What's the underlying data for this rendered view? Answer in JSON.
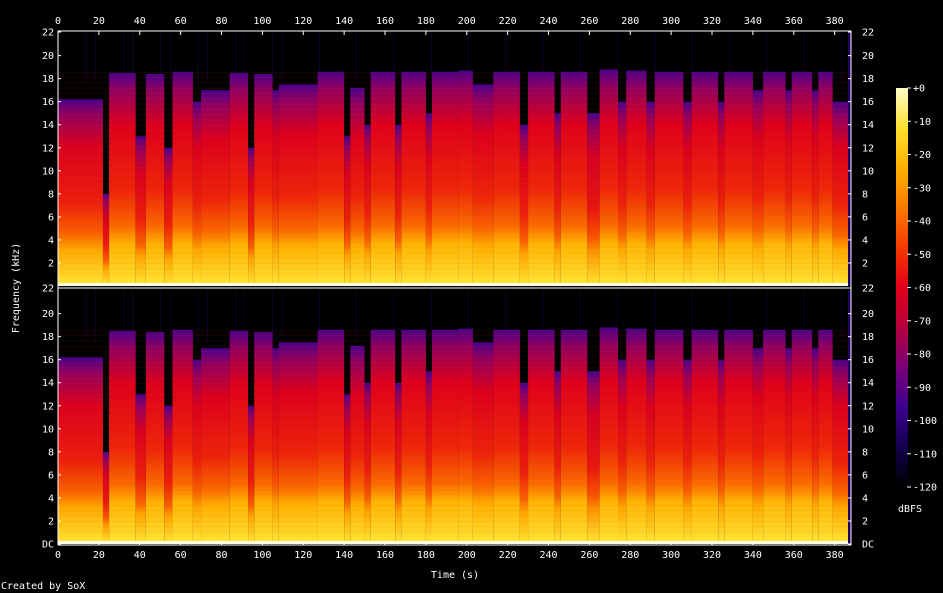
{
  "chart_data": {
    "type": "heatmap",
    "description_free": true,
    "xlabel": "Time (s)",
    "ylabel": "Frequency (kHz)",
    "credit": "Created by SoX",
    "x_ticks": [
      "0",
      "20",
      "40",
      "60",
      "80",
      "100",
      "120",
      "140",
      "160",
      "180",
      "200",
      "220",
      "240",
      "260",
      "280",
      "300",
      "320",
      "340",
      "360",
      "380"
    ],
    "x_range": [
      0,
      388
    ],
    "channels": [
      {
        "y_ticks": [
          "2",
          "4",
          "6",
          "8",
          "10",
          "12",
          "14",
          "16",
          "18",
          "20",
          "22"
        ],
        "y_range": [
          0,
          22.05
        ]
      },
      {
        "y_ticks": [
          "DC",
          "2",
          "4",
          "6",
          "8",
          "10",
          "12",
          "14",
          "16",
          "18",
          "20",
          "22"
        ],
        "y_range": [
          0,
          22.05
        ]
      }
    ],
    "colorbar": {
      "unit": "dBFS",
      "ticks": [
        "+0",
        "-10",
        "-20",
        "-30",
        "-40",
        "-50",
        "-60",
        "-70",
        "-80",
        "-90",
        "-100",
        "-110",
        "-120"
      ],
      "range": [
        -120,
        0
      ],
      "colors": [
        "#000000",
        "#12004d",
        "#3c0090",
        "#7a0078",
        "#b4003c",
        "#e0001a",
        "#f43a00",
        "#fb7a00",
        "#ffb000",
        "#ffe030",
        "#fffcc8"
      ]
    },
    "segments_s": [
      {
        "start": 0,
        "end": 22,
        "top_khz": 16.2,
        "level": 0.42
      },
      {
        "start": 22,
        "end": 25,
        "top_khz": 8,
        "level": 0.3
      },
      {
        "start": 25,
        "end": 38,
        "top_khz": 18.5,
        "level": 0.55
      },
      {
        "start": 38,
        "end": 43,
        "top_khz": 13,
        "level": 0.4
      },
      {
        "start": 43,
        "end": 52,
        "top_khz": 18.4,
        "level": 0.56
      },
      {
        "start": 52,
        "end": 56,
        "top_khz": 12,
        "level": 0.38
      },
      {
        "start": 56,
        "end": 66,
        "top_khz": 18.6,
        "level": 0.57
      },
      {
        "start": 66,
        "end": 70,
        "top_khz": 16,
        "level": 0.4
      },
      {
        "start": 70,
        "end": 84,
        "top_khz": 17.0,
        "level": 0.5
      },
      {
        "start": 84,
        "end": 93,
        "top_khz": 18.5,
        "level": 0.55
      },
      {
        "start": 93,
        "end": 96,
        "top_khz": 12,
        "level": 0.38
      },
      {
        "start": 96,
        "end": 105,
        "top_khz": 18.4,
        "level": 0.55
      },
      {
        "start": 105,
        "end": 108,
        "top_khz": 17,
        "level": 0.4
      },
      {
        "start": 108,
        "end": 127,
        "top_khz": 17.5,
        "level": 0.52
      },
      {
        "start": 127,
        "end": 140,
        "top_khz": 18.6,
        "level": 0.58
      },
      {
        "start": 140,
        "end": 143,
        "top_khz": 13,
        "level": 0.4
      },
      {
        "start": 143,
        "end": 150,
        "top_khz": 17.2,
        "level": 0.52
      },
      {
        "start": 150,
        "end": 153,
        "top_khz": 14,
        "level": 0.4
      },
      {
        "start": 153,
        "end": 165,
        "top_khz": 18.6,
        "level": 0.58
      },
      {
        "start": 165,
        "end": 168,
        "top_khz": 14,
        "level": 0.4
      },
      {
        "start": 168,
        "end": 180,
        "top_khz": 18.6,
        "level": 0.57
      },
      {
        "start": 180,
        "end": 183,
        "top_khz": 15,
        "level": 0.4
      },
      {
        "start": 183,
        "end": 196,
        "top_khz": 18.6,
        "level": 0.57
      },
      {
        "start": 196,
        "end": 203,
        "top_khz": 18.7,
        "level": 0.6
      },
      {
        "start": 203,
        "end": 213,
        "top_khz": 17.5,
        "level": 0.5
      },
      {
        "start": 213,
        "end": 226,
        "top_khz": 18.6,
        "level": 0.58
      },
      {
        "start": 226,
        "end": 230,
        "top_khz": 14,
        "level": 0.4
      },
      {
        "start": 230,
        "end": 243,
        "top_khz": 18.6,
        "level": 0.58
      },
      {
        "start": 243,
        "end": 246,
        "top_khz": 15,
        "level": 0.4
      },
      {
        "start": 246,
        "end": 259,
        "top_khz": 18.6,
        "level": 0.58
      },
      {
        "start": 259,
        "end": 265,
        "top_khz": 15,
        "level": 0.2
      },
      {
        "start": 265,
        "end": 274,
        "top_khz": 18.8,
        "level": 0.58
      },
      {
        "start": 274,
        "end": 278,
        "top_khz": 16,
        "level": 0.42
      },
      {
        "start": 278,
        "end": 288,
        "top_khz": 18.7,
        "level": 0.58
      },
      {
        "start": 288,
        "end": 292,
        "top_khz": 16,
        "level": 0.42
      },
      {
        "start": 292,
        "end": 306,
        "top_khz": 18.6,
        "level": 0.58
      },
      {
        "start": 306,
        "end": 310,
        "top_khz": 16,
        "level": 0.42
      },
      {
        "start": 310,
        "end": 323,
        "top_khz": 18.6,
        "level": 0.58
      },
      {
        "start": 323,
        "end": 326,
        "top_khz": 16,
        "level": 0.42
      },
      {
        "start": 326,
        "end": 340,
        "top_khz": 18.6,
        "level": 0.58
      },
      {
        "start": 340,
        "end": 345,
        "top_khz": 17,
        "level": 0.45
      },
      {
        "start": 345,
        "end": 356,
        "top_khz": 18.6,
        "level": 0.62
      },
      {
        "start": 356,
        "end": 359,
        "top_khz": 17,
        "level": 0.45
      },
      {
        "start": 359,
        "end": 369,
        "top_khz": 18.6,
        "level": 0.62
      },
      {
        "start": 369,
        "end": 372,
        "top_khz": 17,
        "level": 0.45
      },
      {
        "start": 372,
        "end": 379,
        "top_khz": 18.6,
        "level": 0.62
      },
      {
        "start": 379,
        "end": 388,
        "top_khz": 16,
        "level": 0.45
      }
    ]
  }
}
